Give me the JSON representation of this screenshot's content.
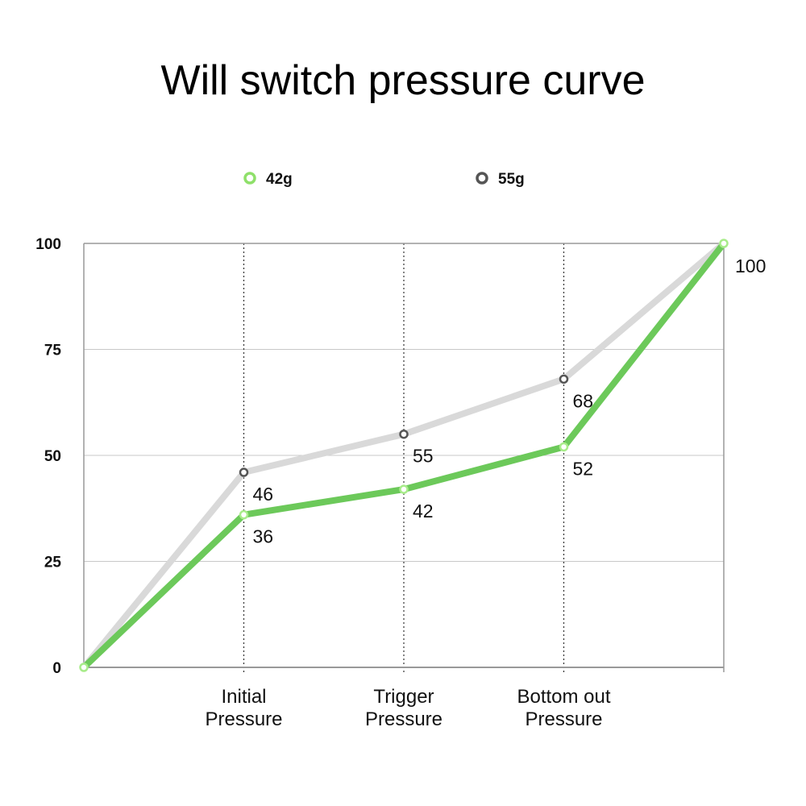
{
  "chart_data": {
    "type": "line",
    "title": "Will switch pressure curve",
    "categories": [
      "",
      "Initial Pressure",
      "Trigger Pressure",
      "Bottom out Pressure",
      ""
    ],
    "category_lines": [
      [
        "Initial",
        "Pressure"
      ],
      [
        "Trigger",
        "Pressure"
      ],
      [
        "Bottom out",
        "Pressure"
      ]
    ],
    "ylim": [
      0,
      100
    ],
    "yticks": [
      "0",
      "25",
      "50",
      "75",
      "100"
    ],
    "ytick_values": [
      0,
      25,
      50,
      75,
      100
    ],
    "grid": true,
    "legend_position": "top",
    "series": [
      {
        "name": "42g",
        "values": [
          0,
          36,
          42,
          52,
          100
        ],
        "labels": [
          "",
          "36",
          "42",
          "52",
          "100"
        ],
        "color": "#6cc95a",
        "marker_color": "#a8ec8a"
      },
      {
        "name": "55g",
        "values": [
          0,
          46,
          55,
          68,
          100
        ],
        "labels": [
          "",
          "46",
          "55",
          "68",
          ""
        ],
        "color": "#d9d9d9",
        "marker_color": "#555555"
      }
    ]
  }
}
